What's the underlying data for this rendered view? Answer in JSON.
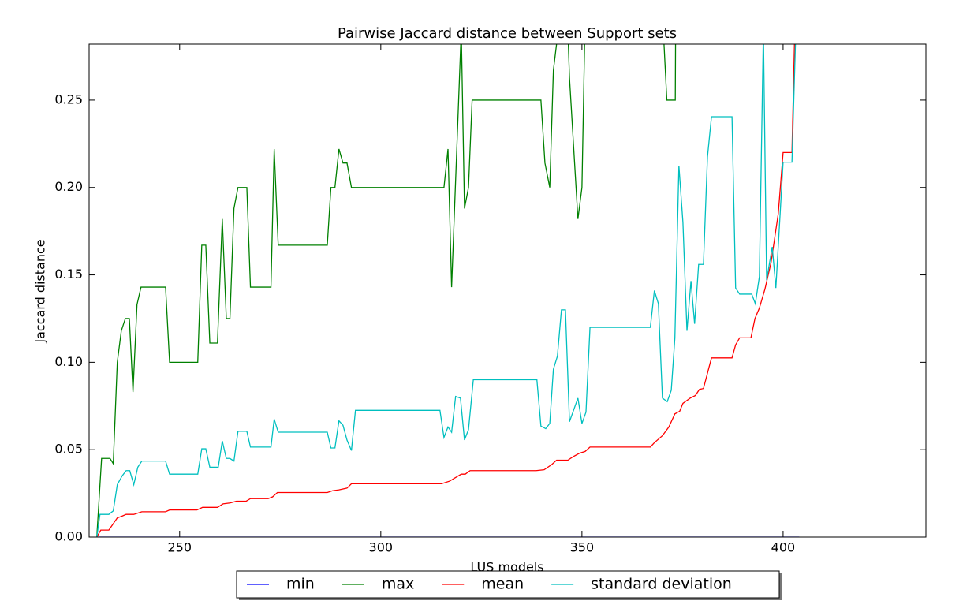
{
  "chart_data": {
    "type": "line",
    "title": "Pairwise Jaccard distance between Support sets",
    "xlabel": "LUS models",
    "ylabel": "Jaccard distance",
    "xlim": [
      227.5,
      435.5
    ],
    "ylim": [
      0,
      0.282
    ],
    "xticks": [
      250,
      300,
      350,
      400
    ],
    "yticks": [
      {
        "value": 0,
        "label": "0.00"
      },
      {
        "value": 0.05,
        "label": "0.05"
      },
      {
        "value": 0.1,
        "label": "0.10"
      },
      {
        "value": 0.15,
        "label": "0.15"
      },
      {
        "value": 0.2,
        "label": "0.20"
      },
      {
        "value": 0.25,
        "label": "0.25"
      }
    ],
    "legend": "lower center",
    "series": [
      {
        "name": "min",
        "color": "#0000ff",
        "x": [
          229.4,
          404
        ],
        "values": [
          0,
          0
        ]
      },
      {
        "name": "max",
        "color": "#008000",
        "x": [
          229.4,
          230.6,
          232.7,
          233.5,
          234.5,
          235.5,
          236.5,
          237.5,
          238.4,
          239.4,
          240.4,
          246.5,
          247.5,
          254.5,
          255.5,
          256.5,
          257.5,
          259.4,
          260.6,
          261.6,
          262.5,
          263.5,
          264.5,
          266.7,
          267.6,
          272.7,
          273.5,
          274.5,
          286.7,
          287.6,
          288.6,
          289.6,
          290.6,
          291.6,
          292.7,
          315.7,
          316.7,
          317.6,
          320,
          320.8,
          321.8,
          322.7,
          339.8,
          340.8,
          342,
          342.9,
          343.9,
          346.5,
          346.9,
          349,
          350,
          350.8,
          370,
          371.1,
          373.2,
          373.3,
          404
        ],
        "values": [
          0,
          0.045,
          0.045,
          0.042,
          0.1,
          0.118,
          0.125,
          0.125,
          0.083,
          0.133,
          0.143,
          0.143,
          0.1,
          0.1,
          0.167,
          0.167,
          0.111,
          0.111,
          0.182,
          0.125,
          0.125,
          0.188,
          0.2,
          0.2,
          0.143,
          0.143,
          0.222,
          0.167,
          0.167,
          0.2,
          0.2,
          0.222,
          0.214,
          0.214,
          0.2,
          0.2,
          0.222,
          0.143,
          0.29,
          0.188,
          0.2,
          0.25,
          0.25,
          0.214,
          0.2,
          0.267,
          0.286,
          0.29,
          0.263,
          0.182,
          0.2,
          0.3,
          0.3,
          0.25,
          0.25,
          0.3,
          0.4
        ]
      },
      {
        "name": "mean",
        "color": "#ff0000",
        "x": [
          229.4,
          230.4,
          232.4,
          233.3,
          234.5,
          235.7,
          236.7,
          238.6,
          240.6,
          246.5,
          247.5,
          254.3,
          255.7,
          259.4,
          260.8,
          262.5,
          264.1,
          266.5,
          267.6,
          272,
          273.1,
          274.3,
          286.7,
          288,
          289.6,
          291.6,
          292.7,
          315.1,
          317.1,
          320,
          321,
          322.2,
          338.6,
          340.6,
          342.5,
          343.7,
          346.5,
          347.8,
          349.4,
          350.8,
          352,
          367,
          368,
          370,
          371.6,
          373.1,
          374.3,
          375.1,
          376.9,
          378.2,
          379.2,
          380.2,
          382.2,
          387.3,
          388.2,
          389.2,
          392,
          393,
          394.1,
          395.5,
          397,
          398.8,
          400,
          402.2,
          403
        ],
        "values": [
          0,
          0.004,
          0.004,
          0.007,
          0.011,
          0.012,
          0.013,
          0.013,
          0.0145,
          0.0145,
          0.0155,
          0.0155,
          0.017,
          0.017,
          0.019,
          0.0195,
          0.0205,
          0.0205,
          0.022,
          0.022,
          0.023,
          0.0255,
          0.0255,
          0.0265,
          0.027,
          0.028,
          0.0305,
          0.0305,
          0.032,
          0.036,
          0.036,
          0.038,
          0.038,
          0.0385,
          0.0415,
          0.044,
          0.044,
          0.046,
          0.048,
          0.049,
          0.0515,
          0.0515,
          0.054,
          0.058,
          0.063,
          0.0705,
          0.072,
          0.0765,
          0.0795,
          0.081,
          0.0845,
          0.085,
          0.1025,
          0.1025,
          0.11,
          0.114,
          0.114,
          0.125,
          0.131,
          0.142,
          0.157,
          0.185,
          0.22,
          0.22,
          0.3
        ]
      },
      {
        "name": "standard deviation",
        "color": "#00bfbf",
        "x": [
          229.4,
          230.2,
          232.4,
          233.5,
          234.5,
          235.7,
          236.7,
          237.6,
          238.6,
          239.6,
          240.6,
          246.5,
          247.5,
          254.5,
          255.5,
          256.5,
          257.5,
          259.6,
          260.6,
          261.6,
          262.5,
          263.5,
          264.5,
          266.7,
          267.6,
          272.7,
          273.5,
          274.5,
          286.7,
          287.6,
          288.6,
          289.6,
          290.6,
          291.6,
          292.7,
          293.7,
          314.7,
          315.7,
          316.7,
          317.6,
          318.6,
          319.8,
          320.8,
          321.8,
          323,
          338.8,
          339.8,
          341,
          342,
          342.9,
          343.9,
          344.9,
          345.9,
          346.9,
          349,
          350,
          351,
          352,
          367,
          368,
          369,
          370,
          371.2,
          372.2,
          373.1,
          374.1,
          375.1,
          376.1,
          377.1,
          378,
          379,
          380.2,
          381.2,
          382.2,
          387.3,
          388.2,
          389.2,
          392.2,
          393.1,
          394.1,
          395.1,
          395.9,
          397.3,
          398.2,
          400,
          402.2,
          403.3
        ],
        "values": [
          0,
          0.013,
          0.013,
          0.015,
          0.03,
          0.035,
          0.038,
          0.038,
          0.03,
          0.04,
          0.0435,
          0.0435,
          0.036,
          0.036,
          0.0505,
          0.0505,
          0.04,
          0.04,
          0.055,
          0.045,
          0.045,
          0.0435,
          0.0605,
          0.0605,
          0.0515,
          0.0515,
          0.0675,
          0.06,
          0.06,
          0.051,
          0.051,
          0.0665,
          0.064,
          0.0555,
          0.0495,
          0.0725,
          0.0725,
          0.057,
          0.063,
          0.06,
          0.0805,
          0.0795,
          0.0555,
          0.0615,
          0.09,
          0.09,
          0.0635,
          0.062,
          0.065,
          0.096,
          0.1035,
          0.13,
          0.13,
          0.066,
          0.0795,
          0.065,
          0.0715,
          0.12,
          0.12,
          0.141,
          0.1335,
          0.0795,
          0.0775,
          0.084,
          0.114,
          0.2125,
          0.18,
          0.118,
          0.1465,
          0.122,
          0.156,
          0.156,
          0.2175,
          0.2405,
          0.2405,
          0.1425,
          0.139,
          0.139,
          0.1335,
          0.149,
          0.29,
          0.147,
          0.166,
          0.1425,
          0.2145,
          0.2145,
          0.3
        ]
      }
    ]
  }
}
